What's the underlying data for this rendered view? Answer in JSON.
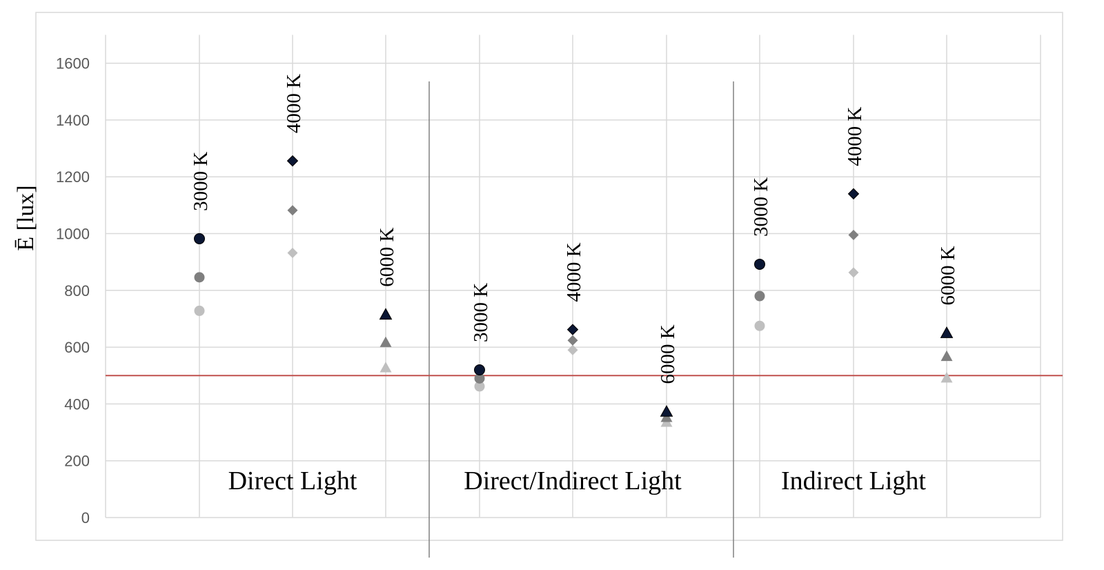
{
  "chart_data": {
    "type": "scatter",
    "ylabel": "Ē [lux]",
    "ylim": [
      0,
      1700
    ],
    "yticks": [
      0,
      200,
      400,
      600,
      800,
      1000,
      1200,
      1400,
      1600
    ],
    "threshold": 500,
    "groups": [
      {
        "label": "Direct Light",
        "columns": [
          {
            "label": "3000 K",
            "marker": "circle",
            "values": [
              982,
              846,
              728
            ]
          },
          {
            "label": "4000 K",
            "marker": "diamond",
            "values": [
              1256,
              1082,
              932
            ]
          },
          {
            "label": "6000 K",
            "marker": "triangle",
            "values": [
              715,
              617,
              528
            ]
          }
        ]
      },
      {
        "label": "Direct/Indirect Light",
        "columns": [
          {
            "label": "3000 K",
            "marker": "circle",
            "values": [
              520,
              490,
              462
            ]
          },
          {
            "label": "4000 K",
            "marker": "diamond",
            "values": [
              662,
              624,
              590
            ]
          },
          {
            "label": "6000 K",
            "marker": "triangle",
            "values": [
              373,
              353,
              336
            ]
          }
        ]
      },
      {
        "label": "Indirect Light",
        "columns": [
          {
            "label": "3000 K",
            "marker": "circle",
            "values": [
              892,
              780,
              675
            ]
          },
          {
            "label": "4000 K",
            "marker": "diamond",
            "values": [
              1140,
              995,
              863
            ]
          },
          {
            "label": "6000 K",
            "marker": "triangle",
            "values": [
              650,
              568,
              492
            ]
          }
        ]
      }
    ],
    "series_colors": [
      "#0a1633",
      "#7f7f7f",
      "#bfbfbf"
    ],
    "threshold_color": "#c0504d",
    "grid": true
  }
}
